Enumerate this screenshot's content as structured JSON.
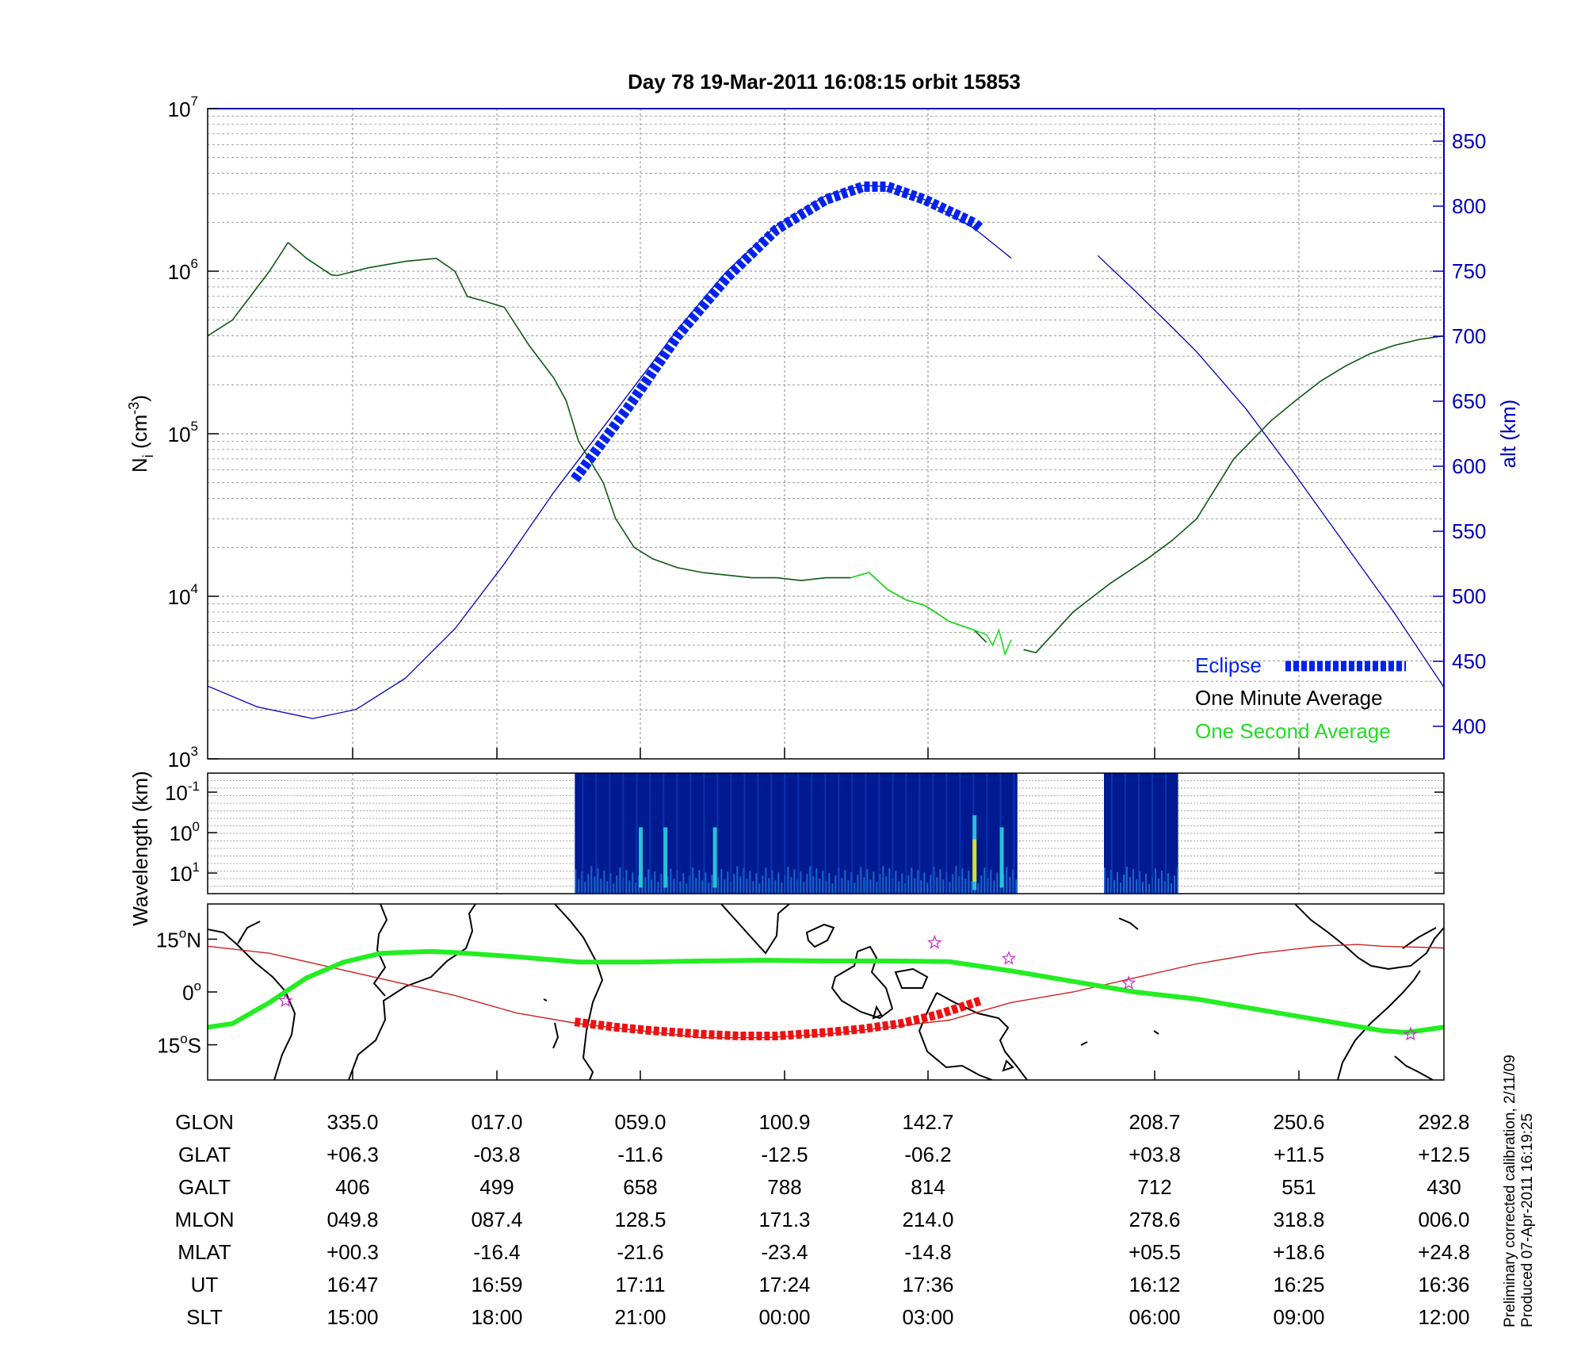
{
  "figure": {
    "title": "Day 78  19-Mar-2011 16:08:15   orbit 15853",
    "footer_lines": [
      "Preliminary corrected calibration, 2/11/09",
      "Produced 07-Apr-2011 16:19:25"
    ],
    "colors": {
      "axis": "#000000",
      "grid": "#8a8a8a",
      "altitude": "#0000c0",
      "eclipse": "#0022ee",
      "density_minute": "#0d5a12",
      "density_second": "#22dd22",
      "spectrogram_bg": "#001a90",
      "footprint": "#22ee22",
      "dip_equator": "#cc2222",
      "eclipse_track": "#ee1111",
      "stars": "#cc33cc"
    }
  },
  "chart_data": [
    {
      "id": "density_altitude",
      "type": "line",
      "ylabel_base": "N",
      "ylabel_sub": "i",
      "ylabel_unit": " (cm",
      "ylabel_unit_exp": "-3",
      "ylabel_tail": ")",
      "y2label": "alt (km)",
      "y_scale": "log",
      "ylim": [
        1000,
        10000000
      ],
      "y_ticks": [
        {
          "base": "10",
          "exp": "3",
          "value": 1000
        },
        {
          "base": "10",
          "exp": "4",
          "value": 10000
        },
        {
          "base": "10",
          "exp": "5",
          "value": 100000
        },
        {
          "base": "10",
          "exp": "6",
          "value": 1000000
        },
        {
          "base": "10",
          "exp": "7",
          "value": 10000000
        }
      ],
      "y2lim": [
        375,
        875
      ],
      "y2_ticks": [
        "400",
        "450",
        "500",
        "550",
        "600",
        "650",
        "700",
        "750",
        "800",
        "850"
      ],
      "grid": true,
      "x_tick_ut": [
        "16:47",
        "16:59",
        "17:11",
        "17:24",
        "17:36",
        "16:12",
        "16:25",
        "16:36"
      ],
      "legend": {
        "placement": "bottom-right",
        "entries": [
          "Eclipse",
          "One Minute Average",
          "One Second Average"
        ]
      },
      "series": [
        {
          "name": "One Minute Average",
          "x_frac": [
            0.0,
            0.02,
            0.05,
            0.065,
            0.08,
            0.1,
            0.105,
            0.13,
            0.16,
            0.185,
            0.2,
            0.21,
            0.225,
            0.24,
            0.26,
            0.28,
            0.29,
            0.3,
            0.32,
            0.33,
            0.345,
            0.36,
            0.38,
            0.4,
            0.42,
            0.44,
            0.46,
            0.48,
            0.5,
            0.52,
            0.535,
            0.55,
            0.565,
            0.58,
            0.6,
            0.62,
            0.63,
            0.65,
            0.66,
            0.67,
            0.7,
            0.72,
            0.73,
            0.76,
            0.78,
            0.8,
            0.83,
            0.86,
            0.88,
            0.9,
            0.92,
            0.94,
            0.96,
            0.98,
            1.0
          ],
          "values": [
            400000,
            500000,
            1000000,
            1500000,
            1200000,
            950000,
            940000,
            1050000,
            1150000,
            1200000,
            1000000,
            700000,
            650000,
            600000,
            350000,
            220000,
            160000,
            90000,
            50000,
            30000,
            20000,
            17000,
            15000,
            14000,
            13500,
            13000,
            13000,
            12500,
            13000,
            13000,
            14000,
            11000,
            9500,
            8800,
            7000,
            6200,
            5200,
            null,
            4700,
            4500,
            8000,
            10500,
            12000,
            17000,
            22000,
            30000,
            70000,
            120000,
            160000,
            210000,
            260000,
            310000,
            350000,
            380000,
            400000
          ]
        },
        {
          "name": "One Second Average",
          "x_frac": [
            0.52,
            0.535,
            0.55,
            0.565,
            0.58,
            0.6,
            0.62,
            0.63,
            0.635,
            0.64,
            0.645,
            0.65
          ],
          "values": [
            13000,
            14000,
            11000,
            9500,
            8800,
            7000,
            6200,
            5800,
            5000,
            6200,
            4400,
            5400
          ]
        },
        {
          "name": "altitude",
          "axis": "y2",
          "x_frac": [
            0.0,
            0.04,
            0.085,
            0.12,
            0.16,
            0.2,
            0.24,
            0.28,
            0.3,
            0.34,
            0.38,
            0.42,
            0.46,
            0.5,
            0.53,
            0.55,
            0.58,
            0.62,
            0.65,
            null,
            0.72,
            0.75,
            0.78,
            0.8,
            0.84,
            0.88,
            0.92,
            0.96,
            1.0
          ],
          "values": [
            431,
            415,
            406,
            413,
            437,
            475,
            525,
            580,
            605,
            655,
            705,
            750,
            785,
            808,
            816,
            815,
            805,
            783,
            760,
            null,
            762,
            735,
            707,
            688,
            644,
            593,
            540,
            487,
            430
          ]
        },
        {
          "name": "Eclipse",
          "axis": "y2",
          "x_frac": [
            0.297,
            0.34,
            0.38,
            0.42,
            0.46,
            0.5,
            0.53,
            0.55,
            0.58,
            0.62,
            0.625
          ],
          "values": [
            590,
            645,
            700,
            745,
            782,
            805,
            815,
            815,
            805,
            787,
            783
          ]
        }
      ]
    },
    {
      "id": "wavelength_spectrogram",
      "type": "heatmap",
      "ylabel": "Wavelength (km)",
      "y_ticks": [
        {
          "base": "10",
          "exp": "-1"
        },
        {
          "base": "10",
          "exp": "0"
        },
        {
          "base": "10",
          "exp": "1"
        }
      ],
      "data_segments_x_frac": [
        [
          0.297,
          0.655
        ],
        [
          0.725,
          0.785
        ]
      ],
      "bright_streaks_x_frac": [
        0.35,
        0.37,
        0.41,
        0.62,
        0.642
      ]
    },
    {
      "id": "ground_track_map",
      "type": "line",
      "y_ticks": [
        {
          "deg": "15",
          "hemi": "N",
          "value": 15
        },
        {
          "deg": "0",
          "hemi": "",
          "value": 0
        },
        {
          "deg": "15",
          "hemi": "S",
          "value": -15
        }
      ],
      "ylim": [
        -25,
        25
      ],
      "series": [
        {
          "name": "footprint",
          "x_frac": [
            0.0,
            0.02,
            0.05,
            0.08,
            0.11,
            0.14,
            0.18,
            0.2,
            0.25,
            0.3,
            0.35,
            0.4,
            0.45,
            0.5,
            0.55,
            0.6,
            0.65,
            0.7,
            0.75,
            0.8,
            0.85,
            0.9,
            0.95,
            0.97,
            1.0
          ],
          "values": [
            -10,
            -9,
            -3,
            4,
            8.5,
            11,
            11.5,
            11.2,
            10,
            8.5,
            8.5,
            8.8,
            9,
            8.8,
            8.8,
            8.6,
            6,
            3,
            0,
            -2,
            -5,
            -8,
            -11,
            -11.5,
            -10
          ]
        },
        {
          "name": "dip_equator",
          "x_frac": [
            0.0,
            0.05,
            0.1,
            0.2,
            0.25,
            0.3,
            0.35,
            0.4,
            0.45,
            0.5,
            0.55,
            0.6,
            0.65,
            0.7,
            0.75,
            0.8,
            0.85,
            0.9,
            0.93,
            0.95,
            1.0
          ],
          "values": [
            13,
            11,
            7,
            -1,
            -6,
            -9,
            -11,
            -13,
            -13,
            -12,
            -10,
            -8,
            -3,
            0,
            4,
            8,
            11,
            13,
            13.5,
            13,
            12.5
          ]
        },
        {
          "name": "eclipse_track",
          "x_frac": [
            0.297,
            0.33,
            0.36,
            0.4,
            0.43,
            0.46,
            0.5,
            0.53,
            0.56,
            0.59,
            0.625
          ],
          "values": [
            -8.5,
            -10,
            -11,
            -12,
            -12.5,
            -12.5,
            -11.5,
            -10.5,
            -9,
            -6.5,
            -2.5
          ]
        }
      ],
      "stars": [
        {
          "x_frac": 0.063,
          "value": -2.5
        },
        {
          "x_frac": 0.588,
          "value": 14
        },
        {
          "x_frac": 0.648,
          "value": 9.5
        },
        {
          "x_frac": 0.745,
          "value": 2.5
        },
        {
          "x_frac": 0.973,
          "value": -12
        }
      ]
    }
  ],
  "ephemeris": {
    "labels": [
      "GLON",
      "GLAT",
      "GALT",
      "MLON",
      "MLAT",
      "UT",
      "SLT"
    ],
    "columns": [
      {
        "GLON": "335.0",
        "GLAT": "+06.3",
        "GALT": "406",
        "MLON": "049.8",
        "MLAT": "+00.3",
        "UT": "16:47",
        "SLT": "15:00"
      },
      {
        "GLON": "017.0",
        "GLAT": "-03.8",
        "GALT": "499",
        "MLON": "087.4",
        "MLAT": "-16.4",
        "UT": "16:59",
        "SLT": "18:00"
      },
      {
        "GLON": "059.0",
        "GLAT": "-11.6",
        "GALT": "658",
        "MLON": "128.5",
        "MLAT": "-21.6",
        "UT": "17:11",
        "SLT": "21:00"
      },
      {
        "GLON": "100.9",
        "GLAT": "-12.5",
        "GALT": "788",
        "MLON": "171.3",
        "MLAT": "-23.4",
        "UT": "17:24",
        "SLT": "00:00"
      },
      {
        "GLON": "142.7",
        "GLAT": "-06.2",
        "GALT": "814",
        "MLON": "214.0",
        "MLAT": "-14.8",
        "UT": "17:36",
        "SLT": "03:00"
      },
      {
        "GLON": "208.7",
        "GLAT": "+03.8",
        "GALT": "712",
        "MLON": "278.6",
        "MLAT": "+05.5",
        "UT": "16:12",
        "SLT": "06:00"
      },
      {
        "GLON": "250.6",
        "GLAT": "+11.5",
        "GALT": "551",
        "MLON": "318.8",
        "MLAT": "+18.6",
        "UT": "16:25",
        "SLT": "09:00"
      },
      {
        "GLON": "292.8",
        "GLAT": "+12.5",
        "GALT": "430",
        "MLON": "006.0",
        "MLAT": "+24.8",
        "UT": "16:36",
        "SLT": "12:00"
      }
    ]
  }
}
